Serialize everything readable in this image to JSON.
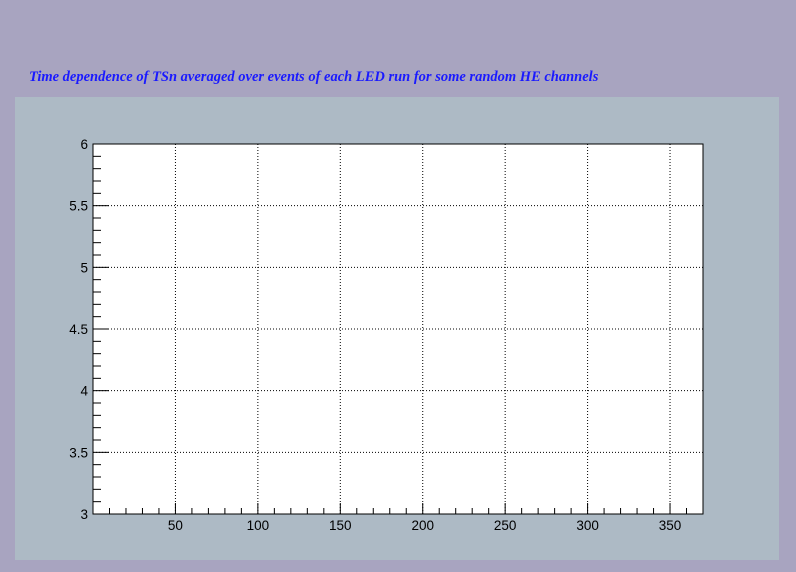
{
  "title": "Time dependence of TSn averaged over events of each LED run for some random HE channels",
  "colors": {
    "background": "#a8a4c0",
    "pad": "#adbac5",
    "frame": "#ffffff",
    "title": "#1a1aff",
    "axis": "#000000",
    "grid": "#000000"
  },
  "chart_data": {
    "type": "scatter",
    "title": "Time dependence of TSn averaged over events of each LED run for some random HE channels",
    "xlabel": "",
    "ylabel": "",
    "xlim": [
      0,
      370
    ],
    "ylim": [
      3,
      6
    ],
    "x_ticks": [
      50,
      100,
      150,
      200,
      250,
      300,
      350
    ],
    "x_tick_labels": [
      "50",
      "100",
      "150",
      "200",
      "250",
      "300",
      "350"
    ],
    "y_ticks": [
      3,
      3.5,
      4,
      4.5,
      5,
      5.5,
      6
    ],
    "y_tick_labels": [
      "3",
      "3.5",
      "4",
      "4.5",
      "5",
      "5.5",
      "6"
    ],
    "grid": true,
    "series": []
  }
}
